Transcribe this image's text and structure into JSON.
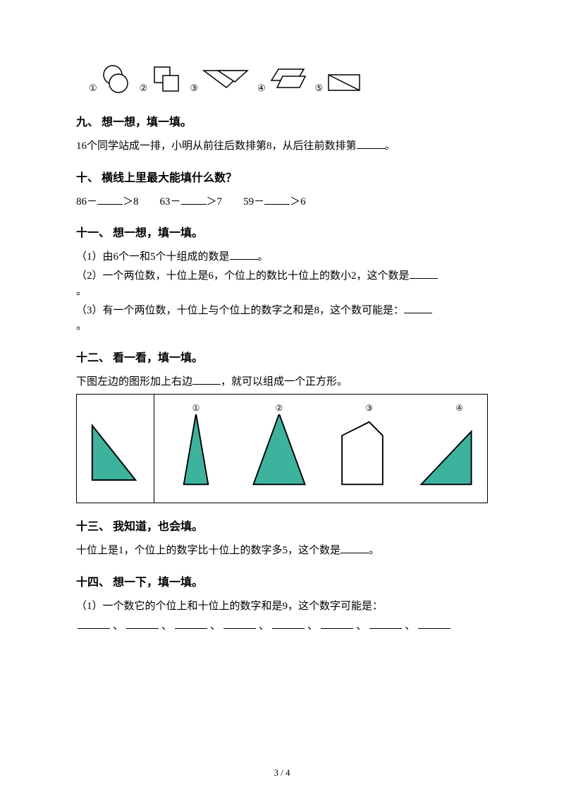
{
  "shapes_row": {
    "labels": [
      "①",
      "②",
      "③",
      "④",
      "⑤"
    ]
  },
  "q9": {
    "title": "九、 想一想，填一填。",
    "text_a": "16个同学站成一排，小明从前往后数排第8，从后往前数排第",
    "text_b": "。"
  },
  "q10": {
    "title": "十、 横线上里最大能填什么数？",
    "items": [
      {
        "a": "86－",
        "b": "＞8"
      },
      {
        "a": "63－",
        "b": "＞7"
      },
      {
        "a": "59－",
        "b": "＞6"
      }
    ]
  },
  "q11": {
    "title": "十一、 想一想，填一填。",
    "line1_a": "（1）由6个一和5个十组成的数是",
    "line1_b": "。",
    "line2_a": "（2）一个两位数，十位上是6，个位上的数比十位上的数小2，这个数是",
    "line2_b": "。",
    "line3_a": "（3）有一个两位数，十位上与个位上的数字之和是8，这个数可能是：",
    "line3_b": "。"
  },
  "q12": {
    "title": "十二、 看一看，填一填。",
    "text_a": "下图左边的图形加上右边",
    "text_b": "，就可以组成一个正方形。",
    "sublabels": [
      "①",
      "②",
      "③",
      "④"
    ],
    "fill_color": "#3db39e",
    "stroke_color": "#000000"
  },
  "q13": {
    "title": "十三、 我知道，也会填。",
    "text_a": "十位上是1，个位上的数字比十位上的数字多5，这个数是",
    "text_b": "。"
  },
  "q14": {
    "title": "十四、 想一下，填一填。",
    "text": "（1）一个数它的个位上和十位上的数字和是9，这个数字可能是：",
    "blank_count": 8,
    "sep": "、"
  },
  "footer": "3 / 4",
  "colors": {
    "text": "#000000",
    "bg": "#ffffff"
  }
}
